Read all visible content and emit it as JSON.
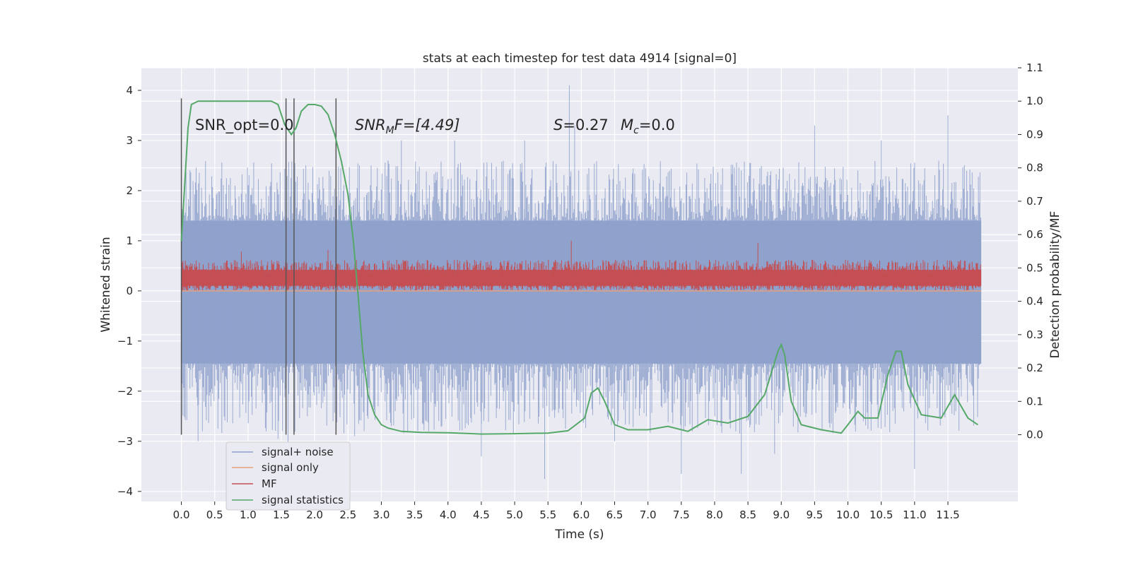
{
  "chart_data": {
    "type": "line",
    "title": "stats at each timestep for test data 4914 [signal=0]",
    "xlabel": "Time (s)",
    "ylabel": "Whitened strain",
    "y2label": "Detection probability/MF",
    "xlim": [
      -0.6,
      12.55
    ],
    "ylim": [
      -4.2,
      4.45
    ],
    "y2lim": [
      -0.2,
      1.1
    ],
    "grid": true,
    "xticks": [
      "0.0",
      "0.5",
      "1.0",
      "1.5",
      "2.0",
      "2.5",
      "3.0",
      "3.5",
      "4.0",
      "4.5",
      "5.0",
      "5.5",
      "6.0",
      "6.5",
      "7.0",
      "7.5",
      "8.0",
      "8.5",
      "9.0",
      "9.5",
      "10.0",
      "10.5",
      "11.0",
      "11.5"
    ],
    "yticks": [
      "4",
      "3",
      "2",
      "1",
      "0",
      "−1",
      "−2",
      "−3",
      "−4"
    ],
    "y2ticks": [
      "1.1",
      "1.0",
      "0.9",
      "0.8",
      "0.7",
      "0.6",
      "0.5",
      "0.4",
      "0.3",
      "0.2",
      "0.1",
      "0.0"
    ],
    "annotations": {
      "snr_opt": "SNR_opt=0.0",
      "snr_mf_sym": "SNR",
      "snr_mf_sub": "M",
      "snr_mf_rest": "F=[4.49]",
      "s_sym": "S",
      "s_rest": "=0.27",
      "mc_sym": "M",
      "mc_sub": "c",
      "mc_rest": "=0.0"
    },
    "vlines_x": [
      0.0,
      1.57,
      1.69,
      2.32
    ],
    "legend": {
      "placement": "lower-left",
      "entries": [
        "signal+ noise",
        "signal only",
        "MF",
        "signal statistics"
      ]
    },
    "series": [
      {
        "name": "signal+ noise",
        "color": "#8da0cb",
        "axis": "left",
        "band": {
          "x_range": [
            0.0,
            12.0
          ],
          "core": [
            -1.45,
            1.4
          ],
          "max_ext": 4.1,
          "min_ext": -3.75
        },
        "x_peaks": [
          0.0,
          0.25,
          1.45,
          1.6,
          2.6,
          3.1,
          3.3,
          4.1,
          4.5,
          5.15,
          5.45,
          5.82,
          5.9,
          6.5,
          7.5,
          8.4,
          8.9,
          9.5,
          10.5,
          11.0,
          11.5
        ],
        "y_peaks": [
          2.5,
          -3.0,
          -2.95,
          -3.1,
          -2.9,
          2.6,
          3.0,
          3.0,
          -3.3,
          3.0,
          -3.75,
          4.1,
          3.3,
          -3.0,
          -3.65,
          -3.65,
          -3.25,
          3.3,
          3.0,
          -3.55,
          3.5
        ]
      },
      {
        "name": "signal only",
        "color": "#e8a07d",
        "axis": "left",
        "x": [
          0.0,
          12.0
        ],
        "y": [
          0.0,
          0.0
        ]
      },
      {
        "name": "MF",
        "color": "#c44e52",
        "axis": "left",
        "band": {
          "x_range": [
            0.0,
            12.0
          ],
          "lo": 0.0,
          "hi": 0.62
        },
        "x_peaks": [
          0.9,
          2.2,
          5.85,
          8.65
        ],
        "y_peaks": [
          0.78,
          0.82,
          1.0,
          0.95
        ]
      },
      {
        "name": "signal statistics",
        "color": "#55a868",
        "axis": "right",
        "x": [
          0.0,
          0.05,
          0.1,
          0.15,
          0.25,
          0.5,
          0.8,
          1.0,
          1.2,
          1.35,
          1.45,
          1.55,
          1.65,
          1.72,
          1.8,
          1.9,
          2.0,
          2.1,
          2.2,
          2.3,
          2.4,
          2.5,
          2.58,
          2.65,
          2.72,
          2.8,
          2.9,
          3.0,
          3.1,
          3.3,
          3.6,
          4.0,
          4.5,
          5.0,
          5.5,
          5.8,
          6.05,
          6.15,
          6.25,
          6.35,
          6.5,
          6.7,
          7.0,
          7.3,
          7.6,
          7.9,
          8.2,
          8.5,
          8.75,
          8.95,
          9.0,
          9.05,
          9.15,
          9.3,
          9.6,
          9.9,
          10.0,
          10.15,
          10.25,
          10.45,
          10.6,
          10.72,
          10.8,
          10.9,
          11.1,
          11.4,
          11.6,
          11.8,
          11.95
        ],
        "y": [
          0.58,
          0.75,
          0.92,
          0.99,
          1.0,
          1.0,
          1.0,
          1.0,
          1.0,
          1.0,
          0.99,
          0.93,
          0.9,
          0.92,
          0.97,
          0.99,
          0.99,
          0.985,
          0.96,
          0.9,
          0.82,
          0.72,
          0.58,
          0.42,
          0.25,
          0.12,
          0.06,
          0.03,
          0.02,
          0.01,
          0.007,
          0.006,
          0.002,
          0.003,
          0.005,
          0.012,
          0.05,
          0.125,
          0.14,
          0.1,
          0.03,
          0.015,
          0.015,
          0.025,
          0.01,
          0.045,
          0.035,
          0.055,
          0.12,
          0.25,
          0.27,
          0.24,
          0.1,
          0.03,
          0.015,
          0.005,
          0.03,
          0.07,
          0.05,
          0.05,
          0.18,
          0.25,
          0.25,
          0.15,
          0.06,
          0.05,
          0.12,
          0.05,
          0.03
        ]
      }
    ]
  }
}
